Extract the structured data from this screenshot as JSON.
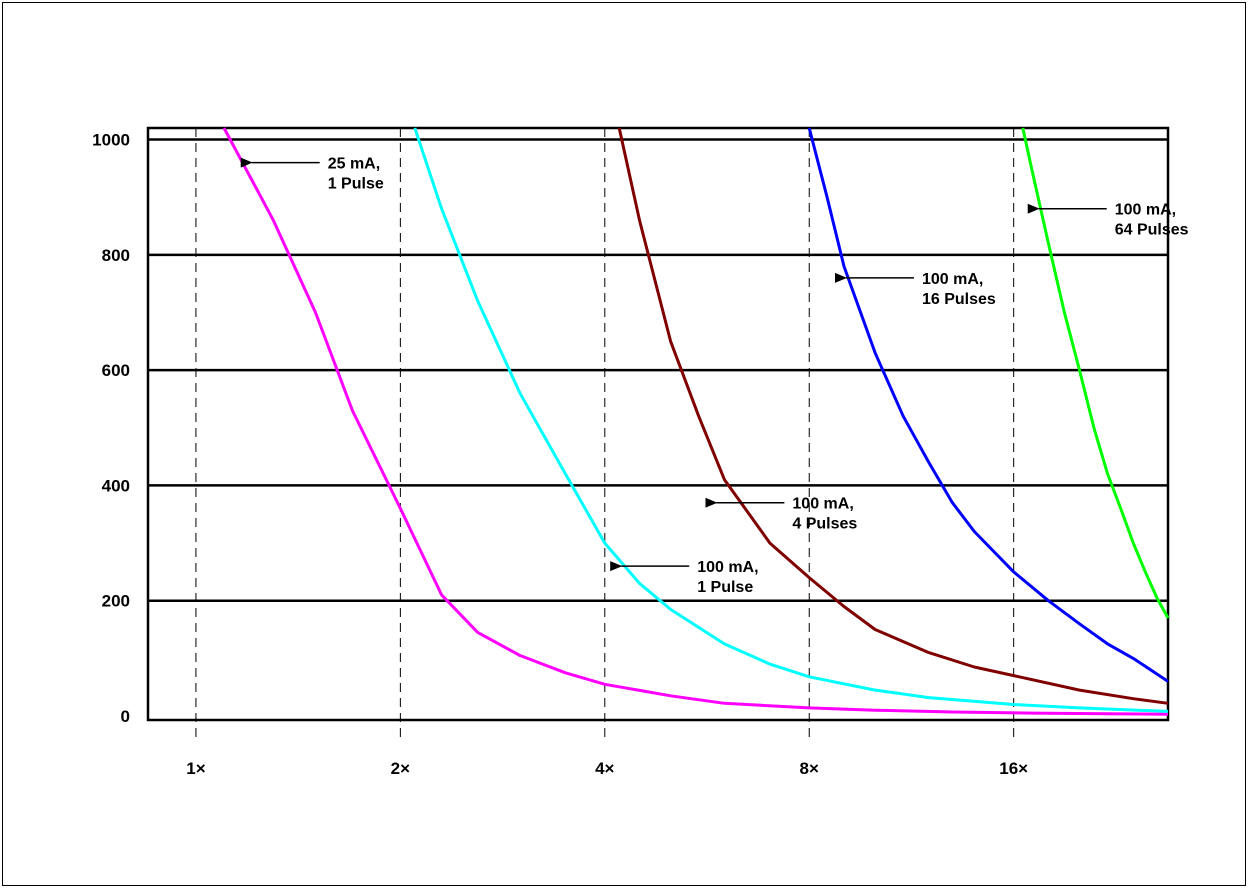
{
  "chart_data": {
    "type": "line",
    "title": "",
    "xlabel": "",
    "ylabel": "",
    "ylim": [
      0,
      1020
    ],
    "xlim": [
      0.85,
      27
    ],
    "grid": {
      "horizontal": true,
      "vertical_dashed": true
    },
    "legend": "none",
    "y_ticks": [
      {
        "value": 0,
        "label": "0"
      },
      {
        "value": 200,
        "label": "200"
      },
      {
        "value": 400,
        "label": "400"
      },
      {
        "value": 600,
        "label": "600"
      },
      {
        "value": 800,
        "label": "800"
      },
      {
        "value": 1000,
        "label": "1000"
      }
    ],
    "x_ticks": [
      {
        "value": 1,
        "label": "1×"
      },
      {
        "value": 2,
        "label": "2×"
      },
      {
        "value": 4,
        "label": "4×"
      },
      {
        "value": 8,
        "label": "8×"
      },
      {
        "value": 16,
        "label": "16×"
      }
    ],
    "series": [
      {
        "color": "#ff00ff",
        "x": [
          1.1,
          1.3,
          1.5,
          1.7,
          2.0,
          2.3,
          2.6,
          3.0,
          3.5,
          4.0,
          5.0,
          6.0,
          8.0,
          10.0,
          13.0,
          17.0,
          22.0,
          27.0
        ],
        "y": [
          1020,
          860,
          700,
          530,
          360,
          210,
          145,
          105,
          75,
          55,
          35,
          22,
          14,
          10,
          7,
          5,
          4,
          3
        ]
      },
      {
        "color": "#00ffff",
        "x": [
          2.1,
          2.3,
          2.6,
          3.0,
          3.5,
          4.0,
          4.5,
          5.0,
          6.0,
          7.0,
          8.0,
          10.0,
          12.0,
          16.0,
          20.0,
          27.0
        ],
        "y": [
          1020,
          880,
          720,
          560,
          420,
          300,
          230,
          185,
          125,
          90,
          68,
          45,
          32,
          20,
          14,
          8
        ]
      },
      {
        "color": "#800000",
        "x": [
          4.2,
          4.5,
          5.0,
          5.5,
          6.0,
          7.0,
          8.0,
          9.0,
          10.0,
          12.0,
          14.0,
          16.0,
          20.0,
          24.0,
          27.0
        ],
        "y": [
          1020,
          860,
          650,
          520,
          410,
          300,
          240,
          190,
          150,
          110,
          85,
          70,
          45,
          30,
          22
        ]
      },
      {
        "color": "#0000ff",
        "x": [
          8.0,
          8.5,
          9.0,
          10.0,
          11.0,
          12.0,
          13.0,
          14.0,
          16.0,
          18.0,
          20.0,
          22.0,
          24.0,
          27.0
        ],
        "y": [
          1020,
          900,
          780,
          630,
          520,
          440,
          370,
          320,
          250,
          200,
          160,
          125,
          100,
          60
        ]
      },
      {
        "color": "#00ff00",
        "x": [
          16.5,
          17.0,
          18.0,
          19.0,
          20.0,
          21.0,
          22.0,
          23.0,
          24.0,
          25.0,
          26.0,
          27.0
        ],
        "y": [
          1020,
          950,
          820,
          700,
          600,
          500,
          420,
          360,
          300,
          250,
          205,
          170
        ]
      }
    ],
    "annotations": [
      {
        "lines": [
          "25 mA,",
          "1 Pulse"
        ],
        "point": [
          1.2,
          960
        ]
      },
      {
        "lines": [
          "100 mA,",
          "64 Pulses"
        ],
        "point": [
          17.3,
          880
        ]
      },
      {
        "lines": [
          "100 mA,",
          "16 Pulses"
        ],
        "point": [
          9.0,
          760
        ]
      },
      {
        "lines": [
          "100 mA,",
          "4 Pulses"
        ],
        "point": [
          5.8,
          370
        ]
      },
      {
        "lines": [
          "100 mA,",
          "1 Pulse"
        ],
        "point": [
          4.2,
          260
        ]
      }
    ]
  }
}
